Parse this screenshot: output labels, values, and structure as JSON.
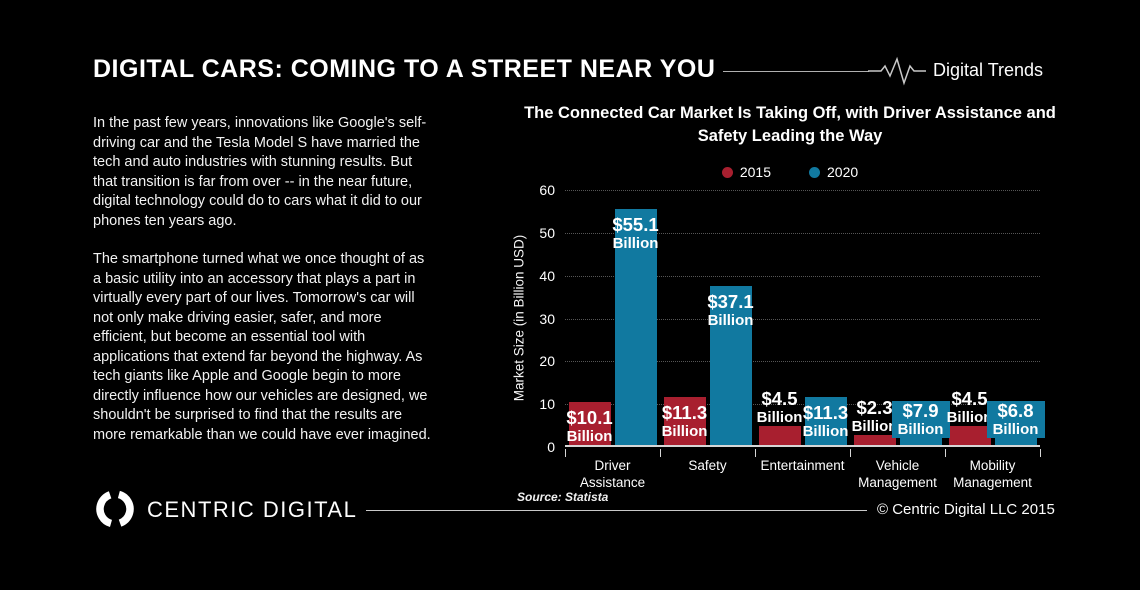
{
  "header": {
    "title": "DIGITAL CARS: COMING TO A STREET NEAR YOU",
    "brand": "Digital Trends"
  },
  "article": {
    "paragraphs": [
      "In the past few years, innovations like Google's self-driving car and the Tesla Model S have married the tech and auto industries with stunning results. But that transition is far from over -- in the near future, digital technology could do to cars what it did to our phones ten years ago.",
      "The smartphone turned what we once thought of as a basic utility into an accessory that plays a part in virtually every part of our lives. Tomorrow's car will not only make driving easier, safer, and more efficient, but become an essential tool with applications that extend far beyond the highway. As tech giants like Apple and Google begin to more directly influence how our vehicles are designed, we shouldn't be surprised to find that the results are more remarkable than we could have ever imagined."
    ]
  },
  "chart_data": {
    "type": "bar",
    "title": "The Connected Car Market Is Taking Off, with Driver Assistance and Safety Leading the Way",
    "categories": [
      "Driver Assistance",
      "Safety",
      "Entertainment",
      "Vehicle Management",
      "Mobility Management"
    ],
    "series": [
      {
        "name": "2015",
        "color": "#a81f2f",
        "values": [
          10.1,
          11.3,
          4.5,
          2.3,
          4.5
        ],
        "short_label_mode": "above"
      },
      {
        "name": "2020",
        "color": "#1179a0",
        "values": [
          55.1,
          37.1,
          11.3,
          7.9,
          6.8
        ],
        "short_label_mode": "anchored"
      }
    ],
    "value_label_unit": "Billion",
    "value_label_prefix": "$",
    "xlabel": "",
    "ylabel": "Market Size (in Billion USD)",
    "ylim": [
      0,
      60
    ],
    "yticks": [
      0,
      10,
      20,
      30,
      40,
      50,
      60
    ],
    "grid": "dotted-horizontal",
    "legend_position": "top"
  },
  "footer": {
    "logo_text": "CENTRIC DIGITAL",
    "source": "Source: Statista",
    "copyright": "© Centric Digital LLC 2015"
  }
}
